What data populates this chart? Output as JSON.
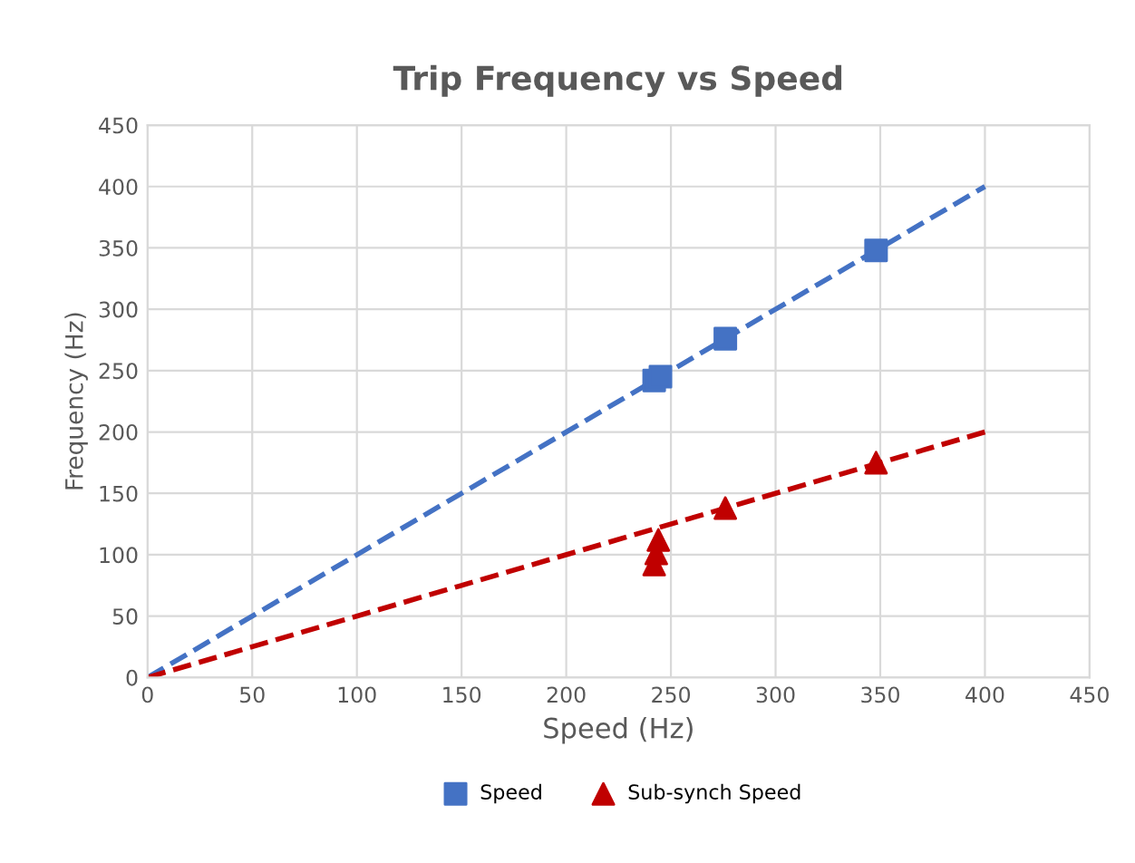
{
  "chart_data": {
    "type": "scatter",
    "title": "Trip Frequency vs Speed",
    "xlabel": "Speed (Hz)",
    "ylabel": "Frequency (Hz)",
    "xlim": [
      0,
      450
    ],
    "xticks": [
      0,
      50,
      100,
      150,
      200,
      250,
      300,
      350,
      400,
      450
    ],
    "ylim": [
      0,
      450
    ],
    "yticks": [
      0,
      50,
      100,
      150,
      200,
      250,
      300,
      350,
      400,
      450
    ],
    "grid": true,
    "legend": "bottom",
    "series": [
      {
        "name": "Speed",
        "color": "#4472c4",
        "marker": "square",
        "x": [
          242,
          245,
          276,
          348
        ],
        "values": [
          242,
          245,
          276,
          348
        ]
      },
      {
        "name": "Sub-synch Speed",
        "color": "#c00000",
        "marker": "triangle",
        "x": [
          242,
          243,
          244,
          276,
          348
        ],
        "values": [
          92,
          101,
          112,
          138,
          175
        ]
      },
      {
        "type": "line",
        "color": "#4472c4",
        "line_style": "dashed",
        "x": [
          0,
          400
        ],
        "values": [
          0,
          400
        ]
      },
      {
        "type": "line",
        "color": "#c00000",
        "line_style": "dashed",
        "x": [
          0,
          400
        ],
        "values": [
          0,
          200
        ]
      }
    ]
  }
}
